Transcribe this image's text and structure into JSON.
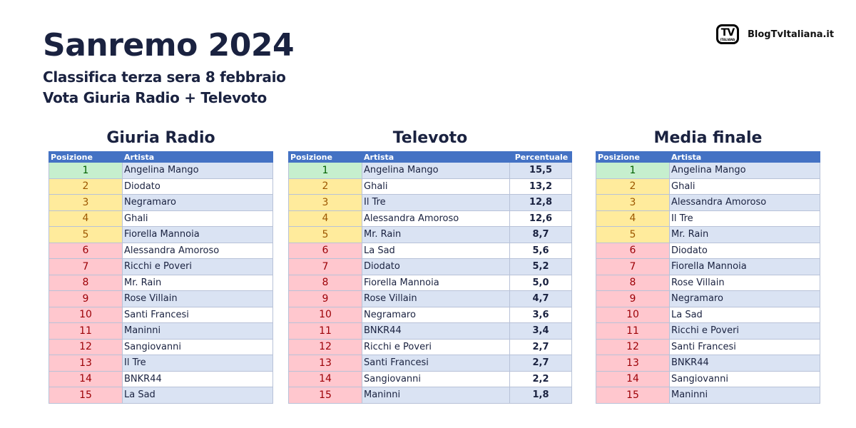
{
  "header": {
    "title": "Sanremo 2024",
    "subtitle1": "Classifica terza sera 8 febbraio",
    "subtitle2": "Vota Giuria Radio + Televoto"
  },
  "brand": {
    "logo_text": "TV",
    "logo_small": "ITALIANA",
    "name": "BlogTvItaliana.it"
  },
  "colors": {
    "header_bg": "#4472c4",
    "band": "#dae3f3",
    "green": "#c6efce",
    "yellow": "#ffeb9c",
    "red": "#ffc7ce"
  },
  "tables": [
    {
      "title": "Giuria Radio",
      "columns": [
        "Posizione",
        "Artista"
      ],
      "rows": [
        {
          "pos": "1",
          "artist": "Angelina Mango",
          "tier": "g"
        },
        {
          "pos": "2",
          "artist": "Diodato",
          "tier": "y"
        },
        {
          "pos": "3",
          "artist": "Negramaro",
          "tier": "y"
        },
        {
          "pos": "4",
          "artist": "Ghali",
          "tier": "y"
        },
        {
          "pos": "5",
          "artist": "Fiorella Mannoia",
          "tier": "y"
        },
        {
          "pos": "6",
          "artist": "Alessandra Amoroso",
          "tier": "r"
        },
        {
          "pos": "7",
          "artist": "Ricchi e Poveri",
          "tier": "r"
        },
        {
          "pos": "8",
          "artist": "Mr. Rain",
          "tier": "r"
        },
        {
          "pos": "9",
          "artist": "Rose Villain",
          "tier": "r"
        },
        {
          "pos": "10",
          "artist": "Santi Francesi",
          "tier": "r"
        },
        {
          "pos": "11",
          "artist": "Maninni",
          "tier": "r"
        },
        {
          "pos": "12",
          "artist": "Sangiovanni",
          "tier": "r"
        },
        {
          "pos": "13",
          "artist": "Il Tre",
          "tier": "r"
        },
        {
          "pos": "14",
          "artist": "BNKR44",
          "tier": "r"
        },
        {
          "pos": "15",
          "artist": "La Sad",
          "tier": "r"
        }
      ]
    },
    {
      "title": "Televoto",
      "columns": [
        "Posizione",
        "Artista",
        "Percentuale"
      ],
      "rows": [
        {
          "pos": "1",
          "artist": "Angelina Mango",
          "value": "15,5",
          "tier": "g"
        },
        {
          "pos": "2",
          "artist": "Ghali",
          "value": "13,2",
          "tier": "y"
        },
        {
          "pos": "3",
          "artist": "Il Tre",
          "value": "12,8",
          "tier": "y"
        },
        {
          "pos": "4",
          "artist": "Alessandra Amoroso",
          "value": "12,6",
          "tier": "y"
        },
        {
          "pos": "5",
          "artist": "Mr. Rain",
          "value": "8,7",
          "tier": "y"
        },
        {
          "pos": "6",
          "artist": "La Sad",
          "value": "5,6",
          "tier": "r"
        },
        {
          "pos": "7",
          "artist": "Diodato",
          "value": "5,2",
          "tier": "r"
        },
        {
          "pos": "8",
          "artist": "Fiorella Mannoia",
          "value": "5,0",
          "tier": "r"
        },
        {
          "pos": "9",
          "artist": "Rose Villain",
          "value": "4,7",
          "tier": "r"
        },
        {
          "pos": "10",
          "artist": "Negramaro",
          "value": "3,6",
          "tier": "r"
        },
        {
          "pos": "11",
          "artist": "BNKR44",
          "value": "3,4",
          "tier": "r"
        },
        {
          "pos": "12",
          "artist": "Ricchi e Poveri",
          "value": "2,7",
          "tier": "r"
        },
        {
          "pos": "13",
          "artist": "Santi Francesi",
          "value": "2,7",
          "tier": "r"
        },
        {
          "pos": "14",
          "artist": "Sangiovanni",
          "value": "2,2",
          "tier": "r"
        },
        {
          "pos": "15",
          "artist": "Maninni",
          "value": "1,8",
          "tier": "r"
        }
      ]
    },
    {
      "title": "Media finale",
      "columns": [
        "Posizione",
        "Artista"
      ],
      "rows": [
        {
          "pos": "1",
          "artist": "Angelina Mango",
          "tier": "g"
        },
        {
          "pos": "2",
          "artist": "Ghali",
          "tier": "y"
        },
        {
          "pos": "3",
          "artist": "Alessandra Amoroso",
          "tier": "y"
        },
        {
          "pos": "4",
          "artist": "Il Tre",
          "tier": "y"
        },
        {
          "pos": "5",
          "artist": "Mr. Rain",
          "tier": "y"
        },
        {
          "pos": "6",
          "artist": "Diodato",
          "tier": "r"
        },
        {
          "pos": "7",
          "artist": "Fiorella Mannoia",
          "tier": "r"
        },
        {
          "pos": "8",
          "artist": "Rose Villain",
          "tier": "r"
        },
        {
          "pos": "9",
          "artist": "Negramaro",
          "tier": "r"
        },
        {
          "pos": "10",
          "artist": "La Sad",
          "tier": "r"
        },
        {
          "pos": "11",
          "artist": "Ricchi e Poveri",
          "tier": "r"
        },
        {
          "pos": "12",
          "artist": "Santi Francesi",
          "tier": "r"
        },
        {
          "pos": "13",
          "artist": "BNKR44",
          "tier": "r"
        },
        {
          "pos": "14",
          "artist": "Sangiovanni",
          "tier": "r"
        },
        {
          "pos": "15",
          "artist": "Maninni",
          "tier": "r"
        }
      ]
    }
  ]
}
